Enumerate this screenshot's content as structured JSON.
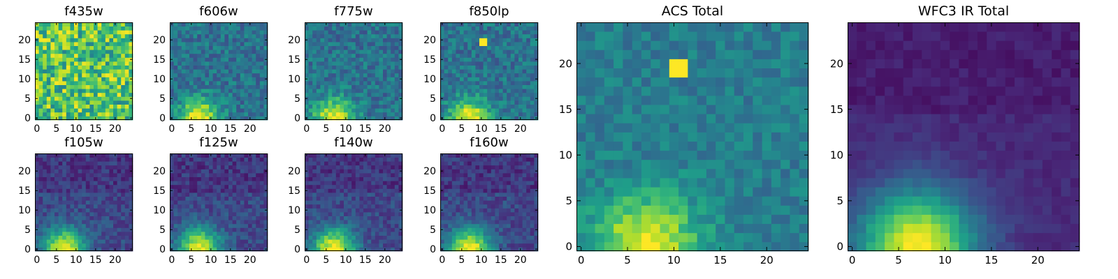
{
  "colors": {
    "axis": "#000000",
    "colormap": "viridis"
  },
  "chart_data": [
    {
      "type": "heatmap",
      "title": "f435w",
      "xticks": [
        "0",
        "5",
        "10",
        "15",
        "20"
      ],
      "yticks": [
        "0",
        "5",
        "10",
        "15",
        "20"
      ],
      "xlim": [
        -0.5,
        24.5
      ],
      "ylim": [
        -0.5,
        24.5
      ],
      "grid": false,
      "pattern": "noisy-flat",
      "seed": 11
    },
    {
      "type": "heatmap",
      "title": "f606w",
      "xticks": [
        "0",
        "5",
        "10",
        "15",
        "20"
      ],
      "yticks": [
        "0",
        "5",
        "10",
        "15",
        "20"
      ],
      "xlim": [
        -0.5,
        24.5
      ],
      "ylim": [
        -0.5,
        24.5
      ],
      "grid": false,
      "pattern": "source-bottom",
      "seed": 23
    },
    {
      "type": "heatmap",
      "title": "f775w",
      "xticks": [
        "0",
        "5",
        "10",
        "15",
        "20"
      ],
      "yticks": [
        "0",
        "5",
        "10",
        "15",
        "20"
      ],
      "xlim": [
        -0.5,
        24.5
      ],
      "ylim": [
        -0.5,
        24.5
      ],
      "grid": false,
      "pattern": "source-bottom",
      "seed": 37
    },
    {
      "type": "heatmap",
      "title": "f850lp",
      "xticks": [
        "0",
        "5",
        "10",
        "15",
        "20"
      ],
      "yticks": [
        "0",
        "5",
        "10",
        "15",
        "20"
      ],
      "xlim": [
        -0.5,
        24.5
      ],
      "ylim": [
        -0.5,
        24.5
      ],
      "grid": false,
      "pattern": "source-bottom-hotspot",
      "seed": 41
    },
    {
      "type": "heatmap",
      "title": "f105w",
      "xticks": [
        "0",
        "5",
        "10",
        "15",
        "20"
      ],
      "yticks": [
        "0",
        "5",
        "10",
        "15",
        "20"
      ],
      "xlim": [
        -0.5,
        24.5
      ],
      "ylim": [
        -0.5,
        24.5
      ],
      "grid": false,
      "pattern": "source-bottom-ir",
      "seed": 53
    },
    {
      "type": "heatmap",
      "title": "f125w",
      "xticks": [
        "0",
        "5",
        "10",
        "15",
        "20"
      ],
      "yticks": [
        "0",
        "5",
        "10",
        "15",
        "20"
      ],
      "xlim": [
        -0.5,
        24.5
      ],
      "ylim": [
        -0.5,
        24.5
      ],
      "grid": false,
      "pattern": "source-bottom-ir",
      "seed": 67
    },
    {
      "type": "heatmap",
      "title": "f140w",
      "xticks": [
        "0",
        "5",
        "10",
        "15",
        "20"
      ],
      "yticks": [
        "0",
        "5",
        "10",
        "15",
        "20"
      ],
      "xlim": [
        -0.5,
        24.5
      ],
      "ylim": [
        -0.5,
        24.5
      ],
      "grid": false,
      "pattern": "source-bottom-ir",
      "seed": 71
    },
    {
      "type": "heatmap",
      "title": "f160w",
      "xticks": [
        "0",
        "5",
        "10",
        "15",
        "20"
      ],
      "yticks": [
        "0",
        "5",
        "10",
        "15",
        "20"
      ],
      "xlim": [
        -0.5,
        24.5
      ],
      "ylim": [
        -0.5,
        24.5
      ],
      "grid": false,
      "pattern": "source-bottom-ir",
      "seed": 83
    },
    {
      "type": "heatmap",
      "title": "ACS Total",
      "xticks": [
        "0",
        "5",
        "10",
        "15",
        "20"
      ],
      "yticks": [
        "0",
        "5",
        "10",
        "15",
        "20"
      ],
      "xlim": [
        -0.5,
        24.5
      ],
      "ylim": [
        -0.5,
        24.5
      ],
      "grid": false,
      "pattern": "acs-total",
      "seed": 97
    },
    {
      "type": "heatmap",
      "title": "WFC3 IR Total",
      "xticks": [
        "0",
        "5",
        "10",
        "15",
        "20"
      ],
      "yticks": [
        "0",
        "5",
        "10",
        "15",
        "20"
      ],
      "xlim": [
        -0.5,
        24.5
      ],
      "ylim": [
        -0.5,
        24.5
      ],
      "grid": false,
      "pattern": "ir-total",
      "seed": 101
    }
  ]
}
